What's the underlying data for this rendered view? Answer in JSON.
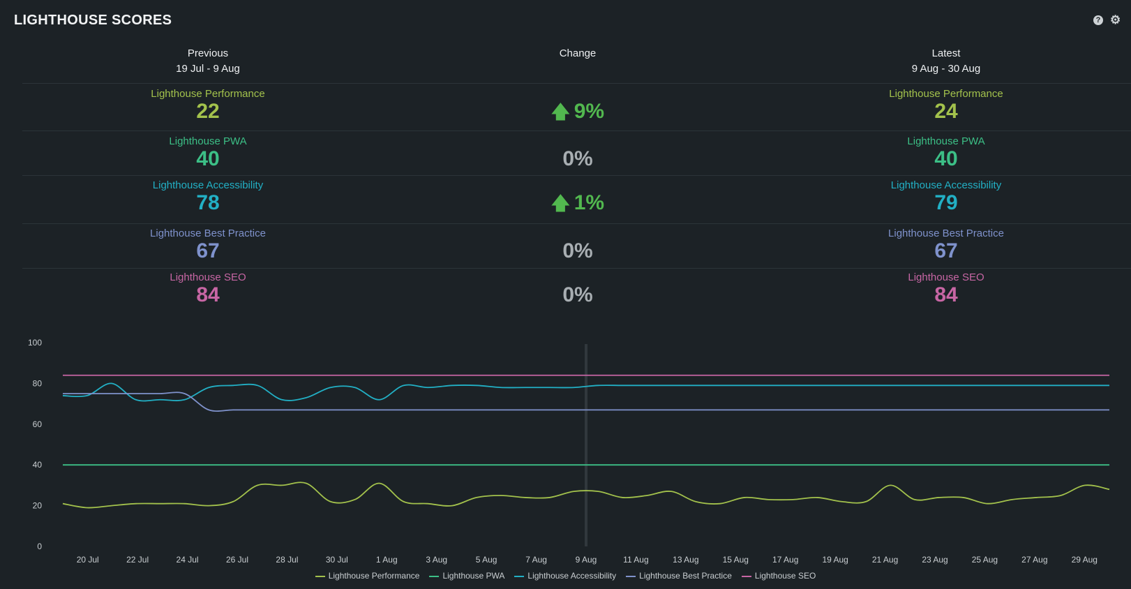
{
  "header": {
    "title": "LIGHTHOUSE SCORES",
    "help_icon": "question-circle-icon",
    "settings_icon": "gear-icon"
  },
  "columns": {
    "previous": {
      "label": "Previous",
      "range": "19 Jul - 9 Aug"
    },
    "change": {
      "label": "Change"
    },
    "latest": {
      "label": "Latest",
      "range": "9 Aug - 30 Aug"
    }
  },
  "metrics": [
    {
      "name": "Lighthouse Performance",
      "color": "#a3c24c",
      "previous": "22",
      "latest": "24",
      "change": "9%",
      "direction": "up",
      "change_color": "#52b84f"
    },
    {
      "name": "Lighthouse PWA",
      "color": "#3cbf86",
      "previous": "40",
      "latest": "40",
      "change": "0%",
      "direction": "none",
      "change_color": "#a8aeb2"
    },
    {
      "name": "Lighthouse Accessibility",
      "color": "#22b0c5",
      "previous": "78",
      "latest": "79",
      "change": "1%",
      "direction": "up",
      "change_color": "#52b84f"
    },
    {
      "name": "Lighthouse Best Practice",
      "color": "#7f92cc",
      "previous": "67",
      "latest": "67",
      "change": "0%",
      "direction": "none",
      "change_color": "#a8aeb2"
    },
    {
      "name": "Lighthouse SEO",
      "color": "#c766a4",
      "previous": "84",
      "latest": "84",
      "change": "0%",
      "direction": "none",
      "change_color": "#a8aeb2"
    }
  ],
  "chart_data": {
    "type": "line",
    "x_tick_labels": [
      "20 Jul",
      "22 Jul",
      "24 Jul",
      "26 Jul",
      "28 Jul",
      "30 Jul",
      "1 Aug",
      "3 Aug",
      "5 Aug",
      "7 Aug",
      "9 Aug",
      "11 Aug",
      "13 Aug",
      "15 Aug",
      "17 Aug",
      "19 Aug",
      "21 Aug",
      "23 Aug",
      "25 Aug",
      "27 Aug",
      "29 Aug"
    ],
    "x_range": [
      "19 Jul",
      "30 Aug"
    ],
    "ylim": [
      0,
      100
    ],
    "y_ticks": [
      0,
      20,
      40,
      60,
      80,
      100
    ],
    "grid": false,
    "marker_at": "9 Aug",
    "legend_position": "bottom",
    "series": [
      {
        "name": "Lighthouse Performance",
        "color": "#a3c24c",
        "values": [
          21,
          19,
          20,
          21,
          21,
          21,
          20,
          22,
          30,
          30,
          31,
          22,
          23,
          31,
          22,
          21,
          20,
          24,
          25,
          24,
          24,
          27,
          27,
          24,
          25,
          27,
          22,
          21,
          24,
          23,
          23,
          24,
          22,
          22,
          30,
          23,
          24,
          24,
          21,
          23,
          24,
          25,
          30,
          28
        ]
      },
      {
        "name": "Lighthouse PWA",
        "color": "#3cbf86",
        "values": [
          40,
          40,
          40,
          40,
          40,
          40,
          40,
          40,
          40,
          40,
          40,
          40,
          40,
          40,
          40,
          40,
          40,
          40,
          40,
          40,
          40,
          40,
          40,
          40,
          40,
          40,
          40,
          40,
          40,
          40,
          40,
          40,
          40,
          40,
          40,
          40,
          40,
          40,
          40,
          40,
          40,
          40,
          40,
          40
        ]
      },
      {
        "name": "Lighthouse Accessibility",
        "color": "#22b0c5",
        "values": [
          74,
          74,
          80,
          72,
          72,
          72,
          78,
          79,
          79,
          72,
          73,
          78,
          78,
          72,
          79,
          78,
          79,
          79,
          78,
          78,
          78,
          78,
          79,
          79,
          79,
          79,
          79,
          79,
          79,
          79,
          79,
          79,
          79,
          79,
          79,
          79,
          79,
          79,
          79,
          79,
          79,
          79,
          79,
          79
        ]
      },
      {
        "name": "Lighthouse Best Practice",
        "color": "#7f92cc",
        "values": [
          75,
          75,
          75,
          75,
          75,
          75,
          67,
          67,
          67,
          67,
          67,
          67,
          67,
          67,
          67,
          67,
          67,
          67,
          67,
          67,
          67,
          67,
          67,
          67,
          67,
          67,
          67,
          67,
          67,
          67,
          67,
          67,
          67,
          67,
          67,
          67,
          67,
          67,
          67,
          67,
          67,
          67,
          67,
          67
        ]
      },
      {
        "name": "Lighthouse SEO",
        "color": "#c766a4",
        "values": [
          84,
          84,
          84,
          84,
          84,
          84,
          84,
          84,
          84,
          84,
          84,
          84,
          84,
          84,
          84,
          84,
          84,
          84,
          84,
          84,
          84,
          84,
          84,
          84,
          84,
          84,
          84,
          84,
          84,
          84,
          84,
          84,
          84,
          84,
          84,
          84,
          84,
          84,
          84,
          84,
          84,
          84,
          84,
          84
        ]
      }
    ]
  }
}
